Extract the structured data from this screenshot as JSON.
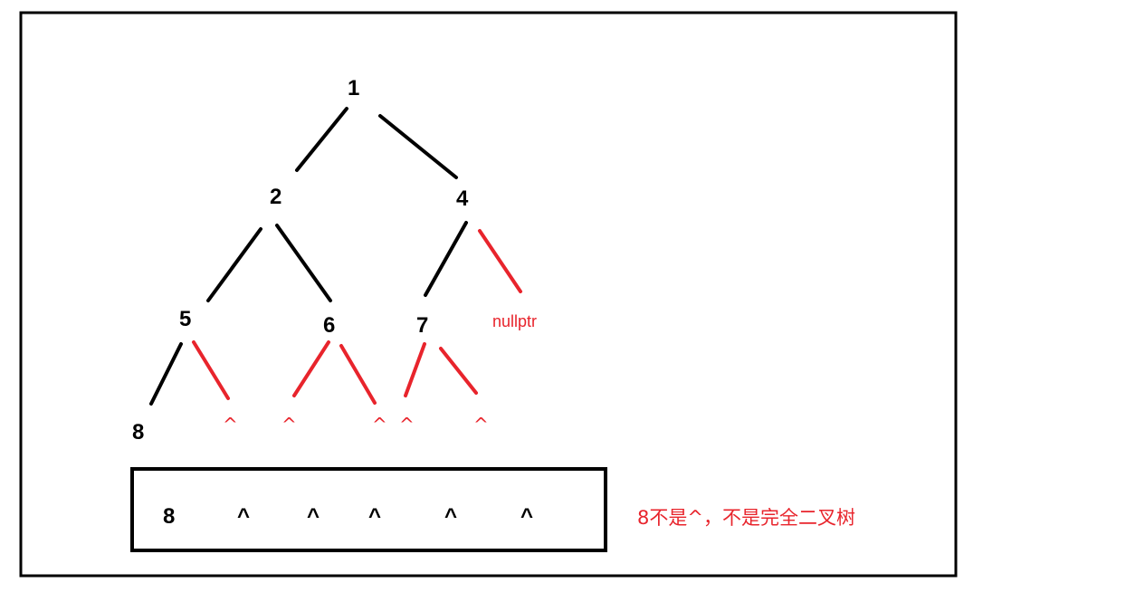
{
  "tree": {
    "nodes": {
      "n1": "1",
      "n2": "2",
      "n4": "4",
      "n5": "5",
      "n6": "6",
      "n7": "7",
      "n8": "8"
    },
    "null_marker": "^",
    "nullptr_label": "nullptr"
  },
  "queue": {
    "items": [
      "8",
      "^",
      "^",
      "^",
      "^",
      "^"
    ]
  },
  "note": "8不是^，不是完全二叉树",
  "colors": {
    "tree_edge": "#000000",
    "null_edge": "#e8242c",
    "annotation": "#e8242c",
    "frame": "#000000"
  }
}
